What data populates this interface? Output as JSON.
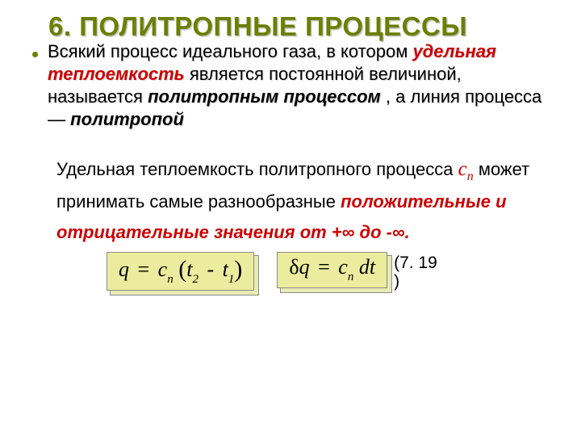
{
  "title": "6. ПОЛИТРОПНЫЕ ПРОЦЕССЫ",
  "para1": {
    "a": "Всякий процесс идеального газа, в котором ",
    "b": "удельная теплоемкость ",
    "c": "является постоянной величиной, называется ",
    "d": "политропным процессом",
    "e": ", а линия процесса — ",
    "f": "политропой"
  },
  "para2": {
    "a": "Удельная теплоемкость политропного процесса ",
    "sym": "c",
    "sub": "n",
    "b": " может принимать самые разнообразные ",
    "c": "положительные и отрицательные значения от +∞ до -∞."
  },
  "eq1": {
    "q": "q",
    "eq": "=",
    "c": "c",
    "n": "n",
    "lp": "(",
    "t2": "t",
    "s2": "2",
    "minus": "-",
    "t1": "t",
    "s1": "1",
    "rp": ")"
  },
  "eq2": {
    "delta": "δ",
    "q": "q",
    "eq": "=",
    "c": "c",
    "n": "n",
    "dt": "dt"
  },
  "eqlabel": {
    "l1": "(7. 19",
    "l2": ")"
  },
  "colors": {
    "olive": "#6b7f00",
    "red": "#cc0000",
    "eqbg": "#ecec9e",
    "shadow": "#d8d8d8"
  }
}
